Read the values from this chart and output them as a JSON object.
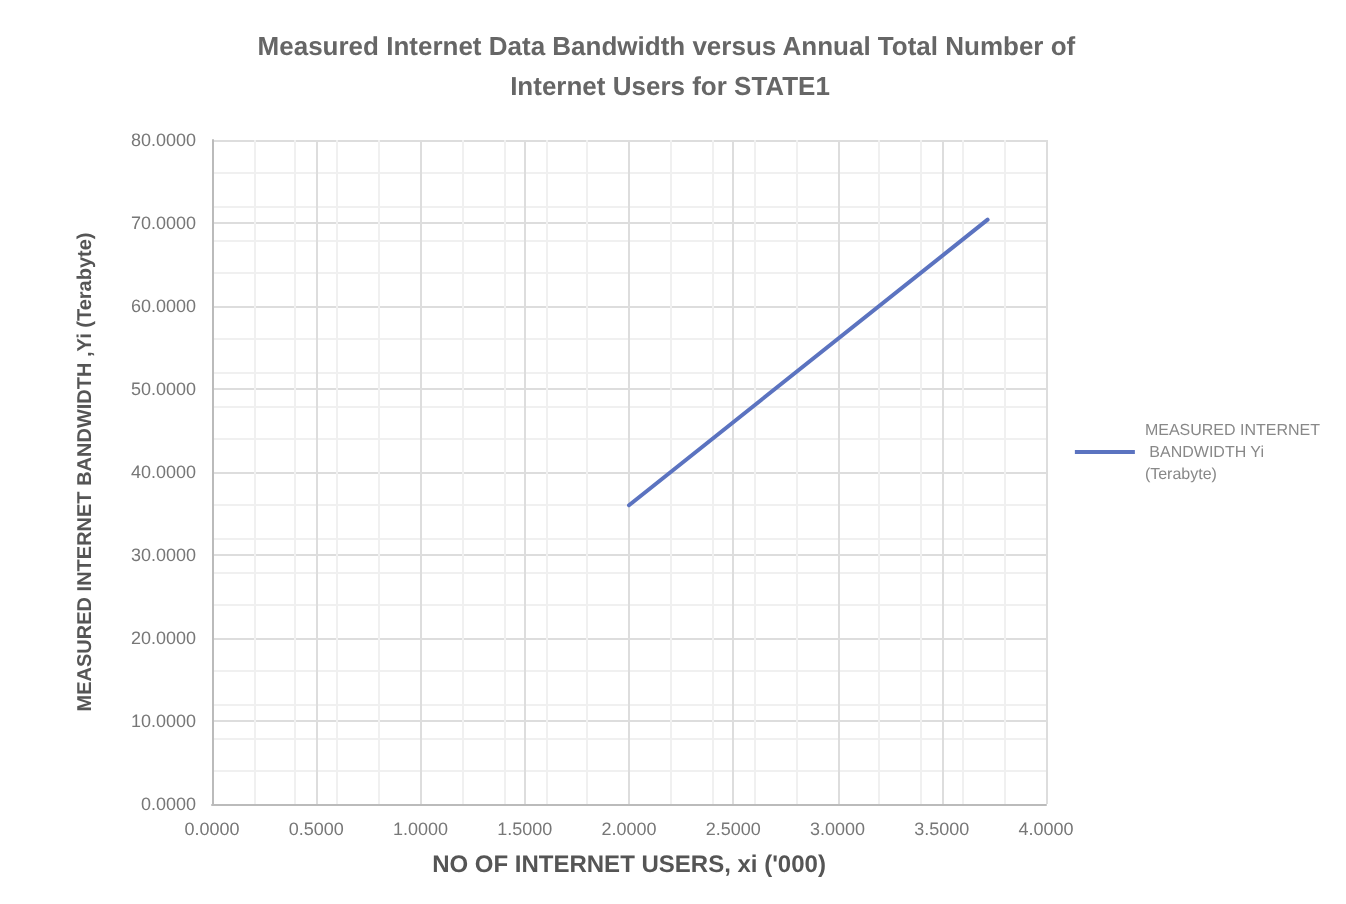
{
  "chart_data": {
    "type": "line",
    "title": "Measured Internet Data Bandwidth versus Annual Total Number of Internet Users for STATE1",
    "xlabel": "NO OF INTERNET USERS, xi ('000)",
    "ylabel": "MEASURED INTERNET BANDWIDTH ,Yi (Terabyte)",
    "x": [
      2.0,
      3.72
    ],
    "series": [
      {
        "name": "MEASURED INTERNET BANDWIDTH Yi (Terabyte)",
        "color": "#5b73c0",
        "values": [
          36.0,
          70.4
        ]
      }
    ],
    "xlim": [
      0,
      4
    ],
    "xticks": [
      {
        "value": 0,
        "label": "0.0000"
      },
      {
        "value": 0.5,
        "label": "0.5000"
      },
      {
        "value": 1,
        "label": "1.0000"
      },
      {
        "value": 1.5,
        "label": "1.5000"
      },
      {
        "value": 2,
        "label": "2.0000"
      },
      {
        "value": 2.5,
        "label": "2.5000"
      },
      {
        "value": 3,
        "label": "3.0000"
      },
      {
        "value": 3.5,
        "label": "3.5000"
      },
      {
        "value": 4,
        "label": "4.0000"
      }
    ],
    "ylim": [
      0,
      80
    ],
    "yticks": [
      {
        "value": 0,
        "label": "0.0000"
      },
      {
        "value": 10,
        "label": "10.0000"
      },
      {
        "value": 20,
        "label": "20.0000"
      },
      {
        "value": 30,
        "label": "30.0000"
      },
      {
        "value": 40,
        "label": "40.0000"
      },
      {
        "value": 50,
        "label": "50.0000"
      },
      {
        "value": 60,
        "label": "60.0000"
      },
      {
        "value": 70,
        "label": "70.0000"
      },
      {
        "value": 80,
        "label": "80.0000"
      }
    ],
    "grid": true,
    "legend": "right",
    "marker": "none",
    "line_style": "solid"
  }
}
